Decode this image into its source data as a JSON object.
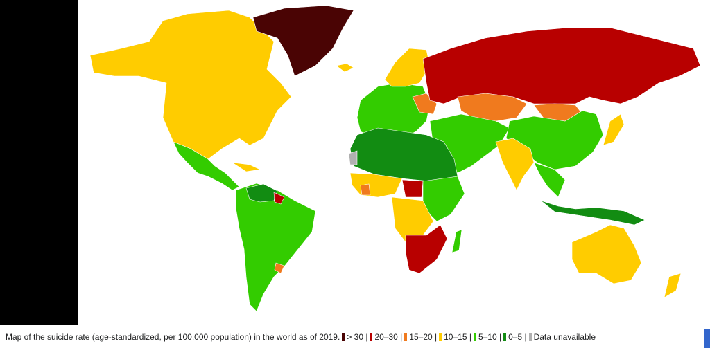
{
  "caption": "Map of the suicide rate (age-standardized, per 100,000 population) in the world as of 2019.",
  "legend": [
    {
      "label": "> 30",
      "color": "#4a0404"
    },
    {
      "label": "20–30",
      "color": "#b80000"
    },
    {
      "label": "15–20",
      "color": "#f07a1e"
    },
    {
      "label": "10–15",
      "color": "#ffcc00"
    },
    {
      "label": "5–10",
      "color": "#33cc00"
    },
    {
      "label": "0–5",
      "color": "#128c12"
    },
    {
      "label": "Data unavailable",
      "color": "#b0b0b0"
    }
  ]
}
